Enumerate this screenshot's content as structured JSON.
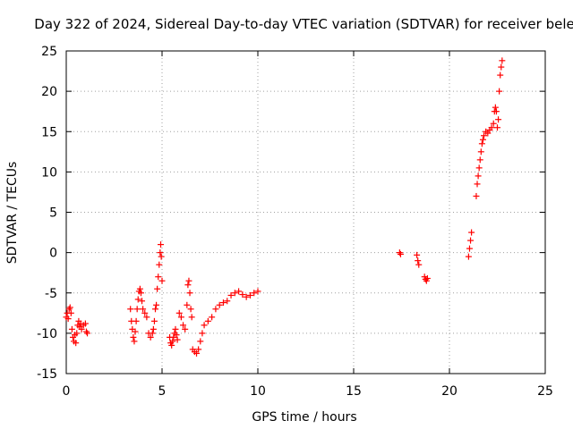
{
  "chart_data": {
    "type": "scatter",
    "title": "Day 322 of 2024, Sidereal Day-to-day VTEC variation (SDTVAR) for receiver bele",
    "xlabel": "GPS time / hours",
    "ylabel": "SDTVAR / TECUs",
    "xlim": [
      0,
      25
    ],
    "ylim": [
      -15,
      25
    ],
    "xticks": [
      0,
      5,
      10,
      15,
      20,
      25
    ],
    "yticks": [
      -15,
      -10,
      -5,
      0,
      5,
      10,
      15,
      20,
      25
    ],
    "grid": true,
    "marker": "+",
    "color": "#ff0000",
    "segments": [
      [
        [
          0.0,
          -8.0
        ],
        [
          0.05,
          -7.5
        ],
        [
          0.1,
          -8.2
        ],
        [
          0.15,
          -7.0
        ],
        [
          0.2,
          -6.8
        ],
        [
          0.25,
          -7.5
        ],
        [
          0.3,
          -9.5
        ],
        [
          0.35,
          -10.5
        ],
        [
          0.4,
          -11.0
        ],
        [
          0.45,
          -10.2
        ],
        [
          0.5,
          -11.2
        ],
        [
          0.55,
          -10.0
        ],
        [
          0.6,
          -9.0
        ],
        [
          0.65,
          -8.5
        ],
        [
          0.7,
          -9.2
        ],
        [
          0.75,
          -8.8
        ],
        [
          0.8,
          -9.5
        ],
        [
          0.9,
          -9.0
        ],
        [
          1.0,
          -8.8
        ],
        [
          1.05,
          -9.8
        ],
        [
          1.1,
          -10.0
        ]
      ],
      [
        [
          3.35,
          -7.0
        ],
        [
          3.4,
          -8.5
        ],
        [
          3.45,
          -9.5
        ],
        [
          3.5,
          -10.5
        ],
        [
          3.55,
          -11.0
        ],
        [
          3.6,
          -9.8
        ],
        [
          3.65,
          -8.5
        ],
        [
          3.7,
          -7.0
        ],
        [
          3.75,
          -5.8
        ],
        [
          3.8,
          -4.8
        ],
        [
          3.85,
          -4.5
        ],
        [
          3.9,
          -5.0
        ],
        [
          3.95,
          -6.0
        ],
        [
          4.0,
          -7.0
        ],
        [
          4.1,
          -7.5
        ],
        [
          4.2,
          -8.0
        ],
        [
          4.3,
          -10.0
        ],
        [
          4.4,
          -10.5
        ],
        [
          4.5,
          -10.0
        ],
        [
          4.55,
          -9.5
        ],
        [
          4.6,
          -8.5
        ],
        [
          4.65,
          -7.0
        ],
        [
          4.7,
          -6.5
        ],
        [
          4.75,
          -4.5
        ],
        [
          4.8,
          -3.0
        ],
        [
          4.85,
          -1.5
        ],
        [
          4.9,
          0.0
        ],
        [
          4.93,
          1.0
        ],
        [
          4.96,
          -0.5
        ],
        [
          5.0,
          -3.5
        ]
      ],
      [
        [
          5.4,
          -10.5
        ],
        [
          5.45,
          -11.2
        ],
        [
          5.5,
          -11.5
        ],
        [
          5.55,
          -11.0
        ],
        [
          5.6,
          -10.5
        ],
        [
          5.65,
          -10.0
        ],
        [
          5.7,
          -9.5
        ],
        [
          5.75,
          -10.2
        ],
        [
          5.8,
          -10.8
        ]
      ],
      [
        [
          5.9,
          -7.5
        ],
        [
          6.0,
          -8.0
        ],
        [
          6.1,
          -9.0
        ],
        [
          6.2,
          -9.5
        ],
        [
          6.3,
          -6.5
        ],
        [
          6.35,
          -4.0
        ],
        [
          6.4,
          -3.5
        ],
        [
          6.45,
          -5.0
        ],
        [
          6.5,
          -7.0
        ],
        [
          6.55,
          -8.0
        ],
        [
          6.6,
          -12.0
        ],
        [
          6.7,
          -12.3
        ],
        [
          6.8,
          -12.5
        ],
        [
          6.9,
          -12.0
        ],
        [
          7.0,
          -11.0
        ],
        [
          7.1,
          -10.0
        ],
        [
          7.2,
          -9.0
        ],
        [
          7.4,
          -8.5
        ],
        [
          7.6,
          -8.0
        ],
        [
          7.8,
          -7.0
        ],
        [
          8.0,
          -6.5
        ],
        [
          8.2,
          -6.2
        ],
        [
          8.4,
          -6.0
        ],
        [
          8.6,
          -5.3
        ],
        [
          8.8,
          -5.0
        ],
        [
          9.0,
          -4.8
        ],
        [
          9.2,
          -5.2
        ],
        [
          9.4,
          -5.5
        ],
        [
          9.6,
          -5.3
        ],
        [
          9.8,
          -5.0
        ],
        [
          10.0,
          -4.8
        ]
      ],
      [
        [
          17.4,
          0.0
        ],
        [
          17.45,
          -0.2
        ]
      ],
      [
        [
          18.3,
          -0.3
        ],
        [
          18.35,
          -1.0
        ],
        [
          18.4,
          -1.5
        ]
      ],
      [
        [
          18.7,
          -3.0
        ],
        [
          18.75,
          -3.3
        ],
        [
          18.8,
          -3.5
        ],
        [
          18.85,
          -3.2
        ]
      ],
      [
        [
          21.0,
          -0.5
        ],
        [
          21.05,
          0.5
        ],
        [
          21.1,
          1.5
        ],
        [
          21.15,
          2.5
        ]
      ],
      [
        [
          21.4,
          7.0
        ],
        [
          21.45,
          8.5
        ],
        [
          21.5,
          9.5
        ],
        [
          21.55,
          10.5
        ],
        [
          21.6,
          11.5
        ],
        [
          21.65,
          12.5
        ],
        [
          21.7,
          13.5
        ],
        [
          21.75,
          14.0
        ],
        [
          21.8,
          14.5
        ],
        [
          21.9,
          15.0
        ],
        [
          22.0,
          14.8
        ],
        [
          22.1,
          15.2
        ],
        [
          22.2,
          15.5
        ],
        [
          22.3,
          16.0
        ],
        [
          22.35,
          17.5
        ],
        [
          22.4,
          18.0
        ],
        [
          22.45,
          17.5
        ],
        [
          22.5,
          15.5
        ],
        [
          22.55,
          16.5
        ],
        [
          22.6,
          20.0
        ],
        [
          22.65,
          22.0
        ],
        [
          22.7,
          23.0
        ],
        [
          22.75,
          23.8
        ]
      ]
    ]
  }
}
